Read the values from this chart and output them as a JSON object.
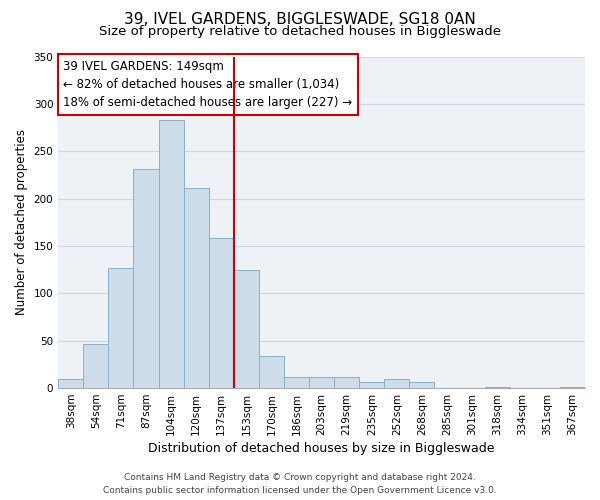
{
  "title": "39, IVEL GARDENS, BIGGLESWADE, SG18 0AN",
  "subtitle": "Size of property relative to detached houses in Biggleswade",
  "xlabel": "Distribution of detached houses by size in Biggleswade",
  "ylabel": "Number of detached properties",
  "bar_labels": [
    "38sqm",
    "54sqm",
    "71sqm",
    "87sqm",
    "104sqm",
    "120sqm",
    "137sqm",
    "153sqm",
    "170sqm",
    "186sqm",
    "203sqm",
    "219sqm",
    "235sqm",
    "252sqm",
    "268sqm",
    "285sqm",
    "301sqm",
    "318sqm",
    "334sqm",
    "351sqm",
    "367sqm"
  ],
  "bar_values": [
    10,
    47,
    127,
    231,
    283,
    211,
    158,
    125,
    34,
    12,
    12,
    12,
    6,
    10,
    6,
    0,
    0,
    1,
    0,
    0,
    1
  ],
  "bar_color": "#ccdce8",
  "bar_edge_color": "#88b0cc",
  "vline_index": 7,
  "vline_color": "#cc0000",
  "annotation_line1": "39 IVEL GARDENS: 149sqm",
  "annotation_line2": "← 82% of detached houses are smaller (1,034)",
  "annotation_line3": "18% of semi-detached houses are larger (227) →",
  "annotation_box_color": "#cc0000",
  "annotation_box_facecolor": "white",
  "ylim": [
    0,
    350
  ],
  "yticks": [
    0,
    50,
    100,
    150,
    200,
    250,
    300,
    350
  ],
  "grid_color": "#c8d8e8",
  "background_color": "#eef2f7",
  "footer_line1": "Contains HM Land Registry data © Crown copyright and database right 2024.",
  "footer_line2": "Contains public sector information licensed under the Open Government Licence v3.0.",
  "title_fontsize": 11,
  "subtitle_fontsize": 9.5,
  "xlabel_fontsize": 9,
  "ylabel_fontsize": 8.5,
  "tick_fontsize": 7.5,
  "annotation_fontsize": 8.5,
  "footer_fontsize": 6.5
}
